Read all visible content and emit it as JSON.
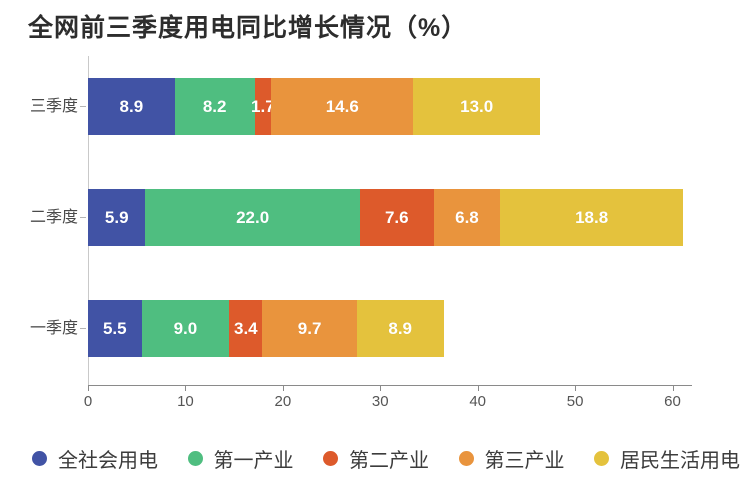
{
  "chart_data": {
    "type": "bar",
    "orientation": "horizontal-stacked",
    "title": "全网前三季度用电同比增长情况（%）",
    "categories": [
      "三季度",
      "二季度",
      "一季度"
    ],
    "series": [
      {
        "name": "全社会用电",
        "color": "#4153A5",
        "values": [
          8.9,
          5.9,
          5.5
        ]
      },
      {
        "name": "第一产业",
        "color": "#4FBE80",
        "values": [
          8.2,
          22.0,
          9.0
        ]
      },
      {
        "name": "第二产业",
        "color": "#DD5A2B",
        "values": [
          1.7,
          7.6,
          3.4
        ]
      },
      {
        "name": "第三产业",
        "color": "#E9943D",
        "values": [
          14.6,
          6.8,
          9.7
        ]
      },
      {
        "name": "居民生活用电",
        "color": "#E4C23D",
        "values": [
          13.0,
          18.8,
          8.9
        ]
      }
    ],
    "x_ticks": [
      0,
      10,
      20,
      30,
      40,
      50,
      60
    ],
    "xlim": [
      0,
      62
    ],
    "value_label_format": "one-decimal",
    "value_label_color": "#ffffff",
    "grid": "off",
    "legend_position": "bottom"
  }
}
